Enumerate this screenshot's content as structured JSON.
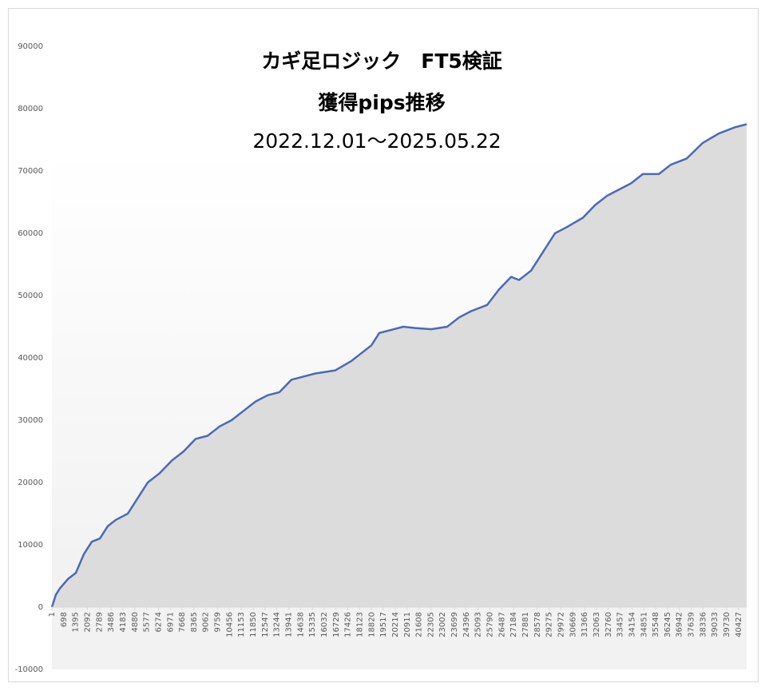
{
  "chart_data": {
    "type": "area",
    "title_lines": [
      "カギ足ロジック　FT5検証",
      "獲得pips推移",
      "2022.12.01～2025.05.22"
    ],
    "x": [
      1,
      235,
      470,
      940,
      1410,
      1646,
      1880,
      2350,
      2821,
      3291,
      3761,
      4466,
      5172,
      5642,
      6347,
      7052,
      7757,
      8463,
      9168,
      9873,
      10578,
      11283,
      11988,
      12694,
      13399,
      14104,
      14809,
      15515,
      16690,
      17630,
      18336,
      18806,
      19276,
      19981,
      20686,
      21392,
      22332,
      23272,
      23977,
      24682,
      25623,
      26328,
      27033,
      27503,
      28209,
      28914,
      29619,
      30324,
      31265,
      31970,
      32675,
      33380,
      34086,
      34791,
      35731,
      36436,
      37377,
      38317,
      39257,
      40198,
      40903
    ],
    "series": [
      {
        "color": "#4a6ab3",
        "values": [
          0,
          2000,
          3000,
          4500,
          5500,
          7000,
          8500,
          10500,
          11000,
          13000,
          14000,
          15000,
          18000,
          20000,
          21500,
          23500,
          25000,
          27000,
          27500,
          29000,
          30000,
          31500,
          33000,
          34000,
          34500,
          36500,
          37000,
          37500,
          38000,
          39500,
          41000,
          42000,
          44000,
          44500,
          45000,
          44800,
          44600,
          45000,
          46500,
          47500,
          48500,
          51000,
          53000,
          52500,
          54000,
          57000,
          60000,
          61000,
          62500,
          64500,
          66000,
          67000,
          68000,
          69500,
          69500,
          71000,
          72000,
          74500,
          76000,
          77000,
          77500
        ]
      }
    ],
    "xlim": [
      1,
      40903
    ],
    "xticks": [
      1,
      698,
      1395,
      2092,
      2789,
      3486,
      4183,
      4880,
      5577,
      6274,
      6971,
      7668,
      8365,
      9062,
      9759,
      10456,
      11153,
      11850,
      12547,
      13244,
      13941,
      14638,
      15335,
      16032,
      16729,
      17426,
      18123,
      18820,
      19517,
      20214,
      20911,
      21608,
      22305,
      23002,
      23699,
      24396,
      25093,
      25790,
      26487,
      27184,
      27881,
      28578,
      29275,
      29972,
      30669,
      31366,
      32063,
      32760,
      33457,
      34154,
      34851,
      35548,
      36245,
      36942,
      37639,
      38336,
      39033,
      39730,
      40427
    ],
    "ylim": [
      -10000,
      90000
    ],
    "yticks": [
      -10000,
      0,
      10000,
      20000,
      30000,
      40000,
      50000,
      60000,
      70000,
      80000,
      90000
    ],
    "area_color": "#dcdcdc"
  }
}
